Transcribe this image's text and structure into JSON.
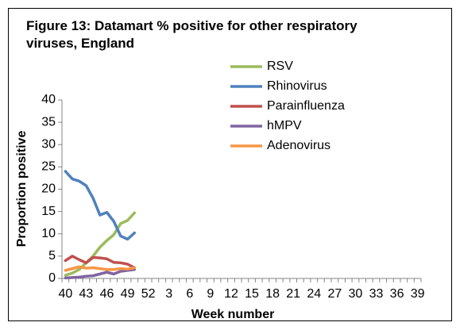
{
  "chart_data": {
    "type": "line",
    "title": "Figure 13: Datamart % positive for other respiratory viruses, England",
    "x_label": "Week number",
    "y_label": "Proportion positive",
    "categories": [
      40,
      null,
      null,
      43,
      null,
      null,
      46,
      null,
      null,
      49,
      null,
      null,
      52,
      null,
      null,
      3,
      null,
      null,
      6,
      null,
      null,
      9,
      null,
      null,
      12,
      null,
      null,
      15,
      null,
      null,
      18,
      null,
      null,
      21,
      null,
      null,
      24,
      null,
      null,
      27,
      null,
      null,
      30,
      null,
      null,
      33,
      null,
      null,
      36,
      null,
      null,
      39
    ],
    "series": [
      {
        "name": "RSV",
        "color": "#9bbb59",
        "values": [
          0.7,
          1.2,
          2.0,
          3.5,
          5.0,
          7.0,
          8.5,
          9.8,
          12.3,
          13.0,
          14.7,
          null,
          null,
          null,
          null,
          null,
          null,
          null,
          null,
          null,
          null,
          null,
          null,
          null,
          null,
          null,
          null,
          null,
          null,
          null,
          null,
          null,
          null,
          null,
          null,
          null,
          null,
          null,
          null,
          null,
          null,
          null,
          null,
          null,
          null,
          null,
          null,
          null,
          null,
          null,
          null,
          null
        ]
      },
      {
        "name": "Rhinovirus",
        "color": "#4f81bd",
        "values": [
          24.0,
          22.3,
          21.8,
          20.8,
          18.0,
          14.2,
          14.8,
          12.8,
          9.5,
          8.8,
          10.2,
          null,
          null,
          null,
          null,
          null,
          null,
          null,
          null,
          null,
          null,
          null,
          null,
          null,
          null,
          null,
          null,
          null,
          null,
          null,
          null,
          null,
          null,
          null,
          null,
          null,
          null,
          null,
          null,
          null,
          null,
          null,
          null,
          null,
          null,
          null,
          null,
          null,
          null,
          null,
          null,
          null
        ]
      },
      {
        "name": "Parainfluenza",
        "color": "#c0504d",
        "values": [
          4.0,
          5.0,
          4.2,
          3.5,
          4.7,
          4.6,
          4.4,
          3.6,
          3.5,
          3.2,
          2.4,
          null,
          null,
          null,
          null,
          null,
          null,
          null,
          null,
          null,
          null,
          null,
          null,
          null,
          null,
          null,
          null,
          null,
          null,
          null,
          null,
          null,
          null,
          null,
          null,
          null,
          null,
          null,
          null,
          null,
          null,
          null,
          null,
          null,
          null,
          null,
          null,
          null,
          null,
          null,
          null,
          null
        ]
      },
      {
        "name": "hMPV",
        "color": "#8064a2",
        "values": [
          0.1,
          0.2,
          0.3,
          0.5,
          0.6,
          1.0,
          1.4,
          1.0,
          1.6,
          1.8,
          2.0,
          null,
          null,
          null,
          null,
          null,
          null,
          null,
          null,
          null,
          null,
          null,
          null,
          null,
          null,
          null,
          null,
          null,
          null,
          null,
          null,
          null,
          null,
          null,
          null,
          null,
          null,
          null,
          null,
          null,
          null,
          null,
          null,
          null,
          null,
          null,
          null,
          null,
          null,
          null,
          null,
          null
        ]
      },
      {
        "name": "Adenovirus",
        "color": "#f79646",
        "values": [
          1.8,
          2.2,
          2.6,
          2.3,
          2.4,
          2.2,
          2.0,
          2.0,
          2.2,
          2.1,
          2.4,
          null,
          null,
          null,
          null,
          null,
          null,
          null,
          null,
          null,
          null,
          null,
          null,
          null,
          null,
          null,
          null,
          null,
          null,
          null,
          null,
          null,
          null,
          null,
          null,
          null,
          null,
          null,
          null,
          null,
          null,
          null,
          null,
          null,
          null,
          null,
          null,
          null,
          null,
          null,
          null,
          null
        ]
      }
    ],
    "ylim": [
      0,
      40
    ],
    "yticks": [
      0,
      5,
      10,
      15,
      20,
      25,
      30,
      35,
      40
    ],
    "grid": false,
    "legend": "top-right"
  }
}
